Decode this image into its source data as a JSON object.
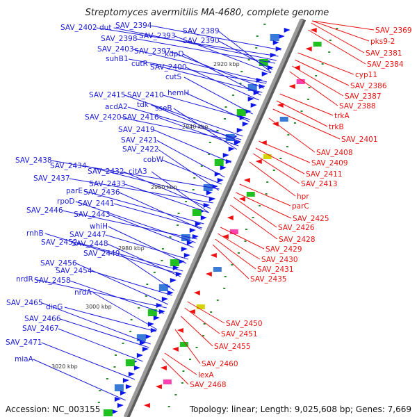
{
  "title": "Streptomyces avermitilis MA-4680, complete genome",
  "accession_text": "Accession: NC_003155",
  "topology_text": "Topology: linear; Length: 9,025,608 bp; Genes: 7,669",
  "colors": {
    "left_label": "#1a1ad8",
    "right_label": "#e81010",
    "backbone": "#9a9a9a",
    "backbone_shadow": "#5c5c5c",
    "forward_gene": "#0a14f0",
    "reverse_gene": "#ee1010",
    "ruler_dot": "#2a8a2a"
  },
  "kbp_markers": [
    "2920 kbp",
    "2940 kbp",
    "2960 kbp",
    "2980 kbp",
    "3000 kbp",
    "3020 kbp"
  ],
  "left_labels": [
    "SAV_2394",
    "SAV_2402",
    "dut",
    "SAV_2393",
    "SAV_2389",
    "SAV_2398",
    "SAV_2390",
    "SAV_2403",
    "SAV_2397",
    "kdpD",
    "suhB1",
    "cutR",
    "SAV_2400",
    "cutS",
    "SAV_2415",
    "SAV_2410",
    "hemH",
    "acdA2",
    "tdk",
    "sseB",
    "SAV_2420",
    "SAV_2416",
    "SAV_2419",
    "SAV_2421",
    "SAV_2422",
    "cobW",
    "SAV_2438",
    "SAV_2434",
    "SAV_2432",
    "citA3",
    "SAV_2437",
    "SAV_2433",
    "parE",
    "SAV_2436",
    "rpoD",
    "SAV_2441",
    "SAV_2446",
    "SAV_2443",
    "whiH",
    "rnhB",
    "SAV_2447",
    "SAV_2452",
    "SAV_2448",
    "SAV_2449",
    "SAV_2456",
    "SAV_2454",
    "nrdR",
    "SAV_2458",
    "nrdA",
    "SAV_2465",
    "dinG",
    "SAV_2466",
    "SAV_2467",
    "SAV_2471",
    "miaA"
  ],
  "right_labels": [
    "SAV_2369",
    "pks9-2",
    "SAV_2381",
    "SAV_2384",
    "cyp11",
    "SAV_2386",
    "SAV_2387",
    "SAV_2388",
    "trkA",
    "trkB",
    "SAV_2401",
    "SAV_2408",
    "SAV_2409",
    "SAV_2411",
    "SAV_2413",
    "hpr",
    "parC",
    "SAV_2425",
    "SAV_2426",
    "SAV_2428",
    "SAV_2429",
    "SAV_2430",
    "SAV_2431",
    "SAV_2435",
    "SAV_2450",
    "SAV_2451",
    "SAV_2455",
    "SAV_2460",
    "lexA",
    "SAV_2468"
  ]
}
